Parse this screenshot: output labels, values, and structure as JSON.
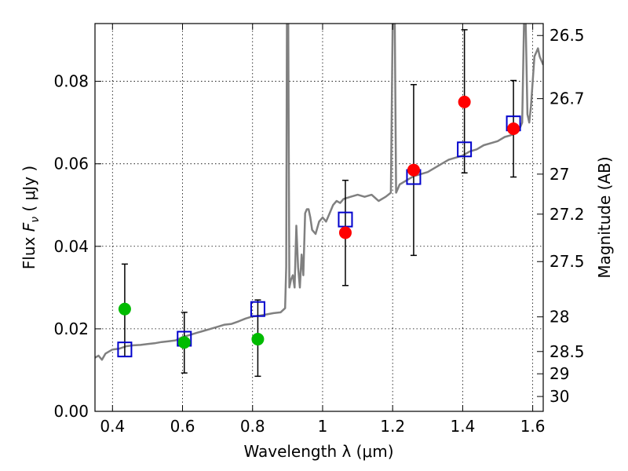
{
  "chart_data": {
    "type": "scatter",
    "title": "",
    "xlabel": "Wavelength  λ (μm)",
    "ylabel": "Flux  F_ν ( μJy )",
    "ylabel_parts": {
      "pre": "Flux  ",
      "F": "F",
      "sub": "ν",
      "post": "  ( μJy )"
    },
    "ylabel_right": "Magnitude (AB)",
    "xlim": [
      0.35,
      1.63
    ],
    "ylim": [
      0.0,
      0.094
    ],
    "xticks": [
      0.4,
      0.6,
      0.8,
      1.0,
      1.2,
      1.4,
      1.6
    ],
    "xtick_labels": [
      "0.4",
      "0.6",
      "0.8",
      "1",
      "1.2",
      "1.4",
      "1.6"
    ],
    "yticks": [
      0.0,
      0.02,
      0.04,
      0.06,
      0.08
    ],
    "ytick_labels": [
      "0.00",
      "0.02",
      "0.04",
      "0.06",
      "0.08"
    ],
    "right_ticks": [
      {
        "label": "26.5",
        "flux": 0.0911
      },
      {
        "label": "26.7",
        "flux": 0.0758
      },
      {
        "label": "27",
        "flux": 0.0575
      },
      {
        "label": "27.2",
        "flux": 0.0478
      },
      {
        "label": "27.5",
        "flux": 0.0363
      },
      {
        "label": "28",
        "flux": 0.0229
      },
      {
        "label": "28.5",
        "flux": 0.0145
      },
      {
        "label": "29",
        "flux": 0.0091
      },
      {
        "label": "30",
        "flux": 0.0036
      }
    ],
    "grid": true,
    "colors": {
      "spectrum": "#808080",
      "optical": "#00bb00",
      "nir": "#ff0000",
      "model": "#0000cc",
      "errorbar": "#000000"
    },
    "spectrum": {
      "x": [
        0.35,
        0.36,
        0.37,
        0.38,
        0.39,
        0.4,
        0.42,
        0.44,
        0.46,
        0.48,
        0.5,
        0.52,
        0.54,
        0.56,
        0.58,
        0.6,
        0.62,
        0.64,
        0.66,
        0.68,
        0.7,
        0.72,
        0.74,
        0.76,
        0.78,
        0.8,
        0.82,
        0.84,
        0.86,
        0.88,
        0.893,
        0.896,
        0.898,
        0.9,
        0.902,
        0.905,
        0.91,
        0.915,
        0.92,
        0.925,
        0.93,
        0.935,
        0.94,
        0.945,
        0.95,
        0.955,
        0.96,
        0.965,
        0.97,
        0.98,
        0.99,
        1.0,
        1.01,
        1.02,
        1.03,
        1.04,
        1.05,
        1.06,
        1.08,
        1.1,
        1.12,
        1.14,
        1.16,
        1.18,
        1.195,
        1.2,
        1.203,
        1.206,
        1.21,
        1.215,
        1.22,
        1.23,
        1.24,
        1.26,
        1.28,
        1.3,
        1.32,
        1.34,
        1.36,
        1.38,
        1.4,
        1.42,
        1.44,
        1.46,
        1.48,
        1.5,
        1.52,
        1.54,
        1.56,
        1.57,
        1.575,
        1.58,
        1.585,
        1.59,
        1.595,
        1.6,
        1.605,
        1.61,
        1.615,
        1.62,
        1.63
      ],
      "y": [
        0.013,
        0.0135,
        0.0125,
        0.014,
        0.0145,
        0.015,
        0.0152,
        0.0158,
        0.016,
        0.0161,
        0.0163,
        0.0165,
        0.0168,
        0.017,
        0.0172,
        0.018,
        0.0185,
        0.019,
        0.0195,
        0.02,
        0.0205,
        0.021,
        0.0212,
        0.0218,
        0.0225,
        0.023,
        0.0232,
        0.0235,
        0.0238,
        0.024,
        0.025,
        0.035,
        0.094,
        0.094,
        0.094,
        0.03,
        0.032,
        0.033,
        0.03,
        0.045,
        0.035,
        0.03,
        0.038,
        0.033,
        0.048,
        0.049,
        0.049,
        0.047,
        0.044,
        0.043,
        0.046,
        0.047,
        0.046,
        0.048,
        0.05,
        0.051,
        0.0505,
        0.0515,
        0.052,
        0.0525,
        0.052,
        0.0525,
        0.051,
        0.052,
        0.053,
        0.094,
        0.094,
        0.094,
        0.053,
        0.054,
        0.055,
        0.0555,
        0.056,
        0.057,
        0.0575,
        0.058,
        0.059,
        0.06,
        0.061,
        0.0615,
        0.062,
        0.063,
        0.0635,
        0.0645,
        0.065,
        0.0655,
        0.0665,
        0.067,
        0.068,
        0.07,
        0.094,
        0.094,
        0.072,
        0.07,
        0.074,
        0.08,
        0.086,
        0.087,
        0.088,
        0.086,
        0.084
      ]
    },
    "series": [
      {
        "marker": "circle",
        "color": "#00bb00",
        "points": [
          {
            "x": 0.435,
            "y": 0.0248,
            "yerr_low": 0.0133,
            "yerr_high": 0.0357
          },
          {
            "x": 0.605,
            "y": 0.0167,
            "yerr_low": 0.0093,
            "yerr_high": 0.024
          },
          {
            "x": 0.815,
            "y": 0.0175,
            "yerr_low": 0.0085,
            "yerr_high": 0.027
          }
        ]
      },
      {
        "marker": "circle",
        "color": "#ff0000",
        "points": [
          {
            "x": 1.065,
            "y": 0.0433,
            "yerr_low": 0.0305,
            "yerr_high": 0.056
          },
          {
            "x": 1.26,
            "y": 0.0585,
            "yerr_low": 0.0378,
            "yerr_high": 0.0792
          },
          {
            "x": 1.405,
            "y": 0.075,
            "yerr_low": 0.0578,
            "yerr_high": 0.0925
          },
          {
            "x": 1.545,
            "y": 0.0685,
            "yerr_low": 0.0568,
            "yerr_high": 0.0802
          }
        ]
      },
      {
        "marker": "open-square",
        "color": "#0000cc",
        "points": [
          {
            "x": 0.435,
            "y": 0.015
          },
          {
            "x": 0.605,
            "y": 0.0176
          },
          {
            "x": 0.815,
            "y": 0.0248
          },
          {
            "x": 1.065,
            "y": 0.0465
          },
          {
            "x": 1.26,
            "y": 0.0568
          },
          {
            "x": 1.405,
            "y": 0.0635
          },
          {
            "x": 1.545,
            "y": 0.0698
          }
        ]
      }
    ]
  }
}
